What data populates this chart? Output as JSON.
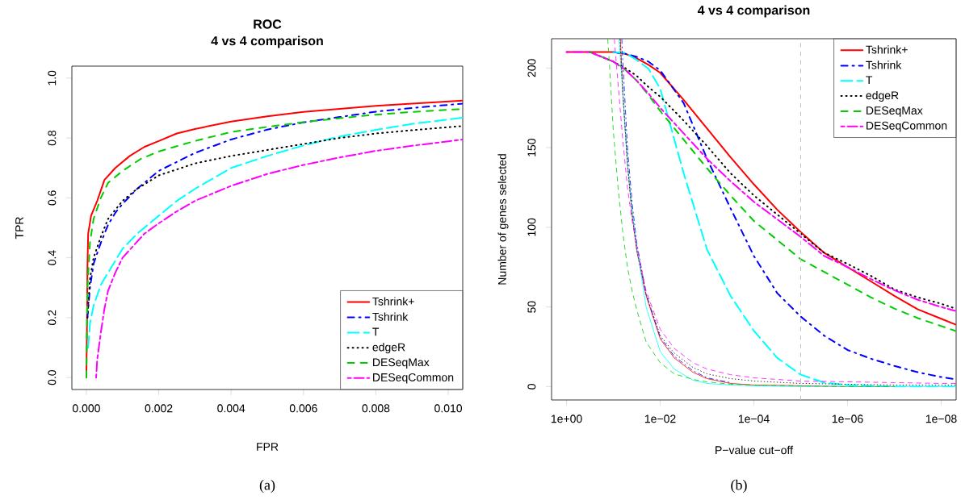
{
  "chart_data": [
    {
      "type": "line",
      "title": "ROC",
      "subtitle": "4 vs 4 comparison",
      "xlabel": "FPR",
      "ylabel": "TPR",
      "annotations": [
        "(a)"
      ],
      "xlim": [
        -0.0004,
        0.0104
      ],
      "ylim": [
        -0.04,
        1.04
      ],
      "xticks": [
        {
          "value": 0,
          "label": "0.000"
        },
        {
          "value": 0.002,
          "label": "0.002"
        },
        {
          "value": 0.004,
          "label": "0.004"
        },
        {
          "value": 0.006,
          "label": "0.006"
        },
        {
          "value": 0.008,
          "label": "0.008"
        },
        {
          "value": 0.01,
          "label": "0.010"
        }
      ],
      "yticks": [
        {
          "value": 0,
          "label": "0.0"
        },
        {
          "value": 0.2,
          "label": "0.2"
        },
        {
          "value": 0.4,
          "label": "0.4"
        },
        {
          "value": 0.6,
          "label": "0.6"
        },
        {
          "value": 0.8,
          "label": "0.8"
        },
        {
          "value": 1,
          "label": "1.0"
        }
      ],
      "legend": "bottom right",
      "series": [
        {
          "name": "Tshrink+",
          "color": "#ff0000",
          "line_style": "solid",
          "x": [
            0,
            2e-05,
            3e-05,
            5e-05,
            0.00013,
            0.0003,
            0.0005,
            0.0008,
            0.0012,
            0.0016,
            0.002,
            0.0025,
            0.003,
            0.004,
            0.005,
            0.006,
            0.007,
            0.008,
            0.009,
            0.0104
          ],
          "values": [
            0,
            0.2,
            0.37,
            0.48,
            0.54,
            0.59,
            0.66,
            0.7,
            0.74,
            0.77,
            0.79,
            0.815,
            0.83,
            0.855,
            0.872,
            0.887,
            0.897,
            0.907,
            0.915,
            0.925
          ]
        },
        {
          "name": "Tshrink",
          "color": "#0000ff",
          "line_style": "dashdot",
          "x": [
            3e-05,
            0.0001,
            0.0002,
            0.0004,
            0.0006,
            0.0008,
            0.001,
            0.0014,
            0.002,
            0.003,
            0.004,
            0.005,
            0.006,
            0.007,
            0.008,
            0.009,
            0.0104
          ],
          "values": [
            0.2,
            0.3,
            0.38,
            0.45,
            0.51,
            0.55,
            0.58,
            0.63,
            0.69,
            0.75,
            0.795,
            0.828,
            0.852,
            0.87,
            0.888,
            0.9,
            0.915
          ]
        },
        {
          "name": "T",
          "color": "#00ffff",
          "line_style": "longdash",
          "x": [
            5e-05,
            0.0001,
            0.0002,
            0.0004,
            0.0006,
            0.0008,
            0.001,
            0.0014,
            0.002,
            0.0025,
            0.003,
            0.004,
            0.005,
            0.006,
            0.007,
            0.008,
            0.009,
            0.0104
          ],
          "values": [
            0.1,
            0.18,
            0.24,
            0.31,
            0.35,
            0.39,
            0.43,
            0.48,
            0.54,
            0.59,
            0.63,
            0.7,
            0.74,
            0.775,
            0.805,
            0.827,
            0.847,
            0.868
          ]
        },
        {
          "name": "edgeR",
          "color": "#000000",
          "line_style": "dotted",
          "x": [
            3e-05,
            0.0001,
            0.0002,
            0.0004,
            0.0006,
            0.001,
            0.0014,
            0.002,
            0.003,
            0.004,
            0.005,
            0.006,
            0.007,
            0.008,
            0.009,
            0.0104
          ],
          "values": [
            0.2,
            0.33,
            0.4,
            0.47,
            0.53,
            0.59,
            0.63,
            0.675,
            0.715,
            0.74,
            0.76,
            0.78,
            0.8,
            0.815,
            0.826,
            0.84
          ]
        },
        {
          "name": "DESeqMax",
          "color": "#00cd00",
          "line_style": "dashed",
          "x": [
            0,
            3e-05,
            0.0001,
            0.0002,
            0.0004,
            0.0006,
            0.001,
            0.0015,
            0.002,
            0.003,
            0.004,
            0.005,
            0.006,
            0.007,
            0.008,
            0.009,
            0.0104
          ],
          "values": [
            0,
            0.3,
            0.45,
            0.53,
            0.6,
            0.65,
            0.69,
            0.73,
            0.755,
            0.79,
            0.82,
            0.837,
            0.853,
            0.866,
            0.878,
            0.887,
            0.897
          ]
        },
        {
          "name": "DESeqCommon",
          "color": "#ff00ff",
          "line_style": "twodash",
          "x": [
            0.00027,
            0.0003,
            0.0004,
            0.0005,
            0.0006,
            0.0008,
            0.001,
            0.0013,
            0.0016,
            0.002,
            0.0025,
            0.003,
            0.004,
            0.005,
            0.006,
            0.007,
            0.008,
            0.009,
            0.0104
          ],
          "values": [
            0,
            0.06,
            0.15,
            0.23,
            0.29,
            0.35,
            0.4,
            0.44,
            0.48,
            0.515,
            0.555,
            0.59,
            0.64,
            0.68,
            0.71,
            0.735,
            0.757,
            0.774,
            0.795
          ]
        }
      ]
    },
    {
      "type": "line",
      "title": "4 vs 4 comparison",
      "xlabel": "P−value cut−off",
      "ylabel": "Number of genes selected",
      "annotations": [
        "(b)"
      ],
      "log": "x",
      "xlim": [
        2.09,
        4.8e-09
      ],
      "ylim": [
        -8.4,
        218.4
      ],
      "xticks": [
        {
          "value": 1,
          "label": "1e+00"
        },
        {
          "value": 0.01,
          "label": "1e−02"
        },
        {
          "value": 0.0001,
          "label": "1e−04"
        },
        {
          "value": 1e-06,
          "label": "1e−06"
        },
        {
          "value": 1e-08,
          "label": "1e−08"
        }
      ],
      "yticks": [
        0,
        50,
        100,
        150,
        200
      ],
      "legend": "top right",
      "ref_lines": [
        {
          "axis": "x",
          "value": 1e-05,
          "color": "#bebebe",
          "line_style": "dashed"
        }
      ],
      "x": [
        1,
        0.316,
        0.1,
        0.0562,
        0.0316,
        0.0178,
        0.01,
        0.00316,
        0.001,
        0.000316,
        0.0001,
        3.16e-05,
        1e-05,
        3.16e-06,
        1e-06,
        3.16e-07,
        1e-07,
        3.16e-08,
        1e-08,
        5e-09
      ],
      "series": [
        {
          "name": "Tshrink+",
          "color": "#ff0000",
          "line_style": "solid",
          "values": [
            210,
            210,
            210,
            209,
            206,
            202,
            197,
            180,
            162,
            144,
            127,
            111,
            97,
            84,
            75,
            66,
            57,
            48.5,
            42.6,
            39
          ]
        },
        {
          "name": "Tshrink",
          "color": "#0000ff",
          "line_style": "dashdot",
          "values": [
            null,
            null,
            210,
            209,
            207,
            204,
            198.5,
            178,
            143,
            112,
            82,
            58.6,
            44,
            32,
            23,
            17.5,
            13,
            9,
            6,
            4.6
          ]
        },
        {
          "name": "T",
          "color": "#00ffff",
          "line_style": "longdash",
          "values": [
            null,
            null,
            210,
            209.5,
            205,
            199.5,
            187,
            134,
            86,
            57,
            35,
            18,
            7.5,
            2.5,
            1,
            0.5,
            0,
            0,
            0,
            0
          ]
        },
        {
          "name": "edgeR",
          "color": "#000000",
          "line_style": "dotted",
          "values": [
            null,
            210,
            204,
            200,
            195,
            188,
            182,
            167,
            151,
            134,
            120,
            108,
            96,
            84,
            77,
            69.5,
            61,
            56,
            52,
            49
          ]
        },
        {
          "name": "DESeqMax",
          "color": "#00cd00",
          "line_style": "dashed",
          "values": [
            null,
            210,
            204,
            199,
            192,
            183,
            173,
            155,
            137,
            120,
            104,
            92,
            80,
            72,
            64,
            56,
            49,
            43,
            38,
            35
          ]
        },
        {
          "name": "DESeqCommon",
          "color": "#ff00ff",
          "line_style": "twodash",
          "values": [
            210,
            210,
            204,
            199,
            192,
            184,
            175,
            159,
            143,
            129,
            116,
            105,
            94,
            82,
            75,
            67.5,
            60.5,
            54.5,
            50,
            47.5
          ]
        },
        {
          "color": "#ff0000",
          "line_style": "solid",
          "x": [
            0.0708,
            0.0631,
            0.0501,
            0.0398,
            0.0316,
            0.02,
            0.01,
            0.00501,
            0.002,
            0.001,
            0.000316,
            0.0001,
            1e-05,
            1e-06,
            1e-07
          ],
          "values": [
            218,
            185,
            140,
            108,
            85,
            57,
            30,
            18,
            9,
            5,
            2,
            1,
            0.5,
            0,
            0
          ]
        },
        {
          "color": "#0000ff",
          "line_style": "dashdot",
          "x": [
            0.0661,
            0.0631,
            0.0501,
            0.0398,
            0.0316,
            0.02,
            0.01,
            0.00501,
            0.002,
            0.001,
            0.000316
          ],
          "values": [
            218,
            205,
            150,
            115,
            90,
            58,
            31,
            19,
            10,
            5.5,
            2.5
          ]
        },
        {
          "color": "#00ffff",
          "line_style": "solid",
          "x": [
            0.0759,
            0.0631,
            0.0501,
            0.0398,
            0.0316,
            0.02,
            0.01,
            0.00501,
            0.002,
            0.001,
            0.000316,
            0.0001,
            1e-05,
            1e-06,
            1e-07,
            1e-08,
            5e-09
          ],
          "values": [
            218,
            185,
            140,
            110,
            88,
            50,
            22,
            11,
            4,
            2,
            1,
            0.5,
            0,
            0,
            0,
            0,
            0
          ]
        },
        {
          "color": "#000000",
          "line_style": "dotted",
          "x": [
            0.0724,
            0.0631,
            0.0501,
            0.0398,
            0.0316,
            0.02,
            0.01,
            0.00501,
            0.002,
            0.001,
            0.000316,
            0.0001,
            1e-05,
            1e-06,
            1e-07,
            1e-08,
            5e-09
          ],
          "values": [
            218,
            185,
            140,
            108,
            86,
            58,
            32,
            21,
            12,
            8,
            5,
            3.5,
            2,
            1.5,
            1,
            1,
            1
          ]
        },
        {
          "color": "#00cd00",
          "line_style": "dashed",
          "x": [
            0.132,
            0.126,
            0.1,
            0.0794,
            0.0631,
            0.0501,
            0.0398,
            0.0316,
            0.02,
            0.01,
            0.00501,
            0.002,
            0.001,
            0.000316,
            0.0001,
            1e-05,
            1e-06,
            1e-07
          ],
          "values": [
            218,
            210,
            160,
            125,
            97,
            75,
            60,
            48,
            28,
            15,
            8,
            4.5,
            3,
            1.5,
            1,
            0.5,
            0,
            0
          ]
        },
        {
          "color": "#ff00ff",
          "line_style": "dashed",
          "x": [
            0.0955,
            0.0794,
            0.0631,
            0.0501,
            0.0398,
            0.0316,
            0.02,
            0.01,
            0.00501,
            0.002,
            0.001,
            0.000316,
            0.0001,
            1e-05,
            1e-06,
            1e-07,
            1e-08,
            5e-09
          ],
          "values": [
            218,
            190,
            155,
            125,
            104,
            88,
            60,
            36,
            24,
            15,
            11,
            7.5,
            5.5,
            3.5,
            3,
            2.5,
            2,
            2
          ]
        }
      ]
    }
  ]
}
